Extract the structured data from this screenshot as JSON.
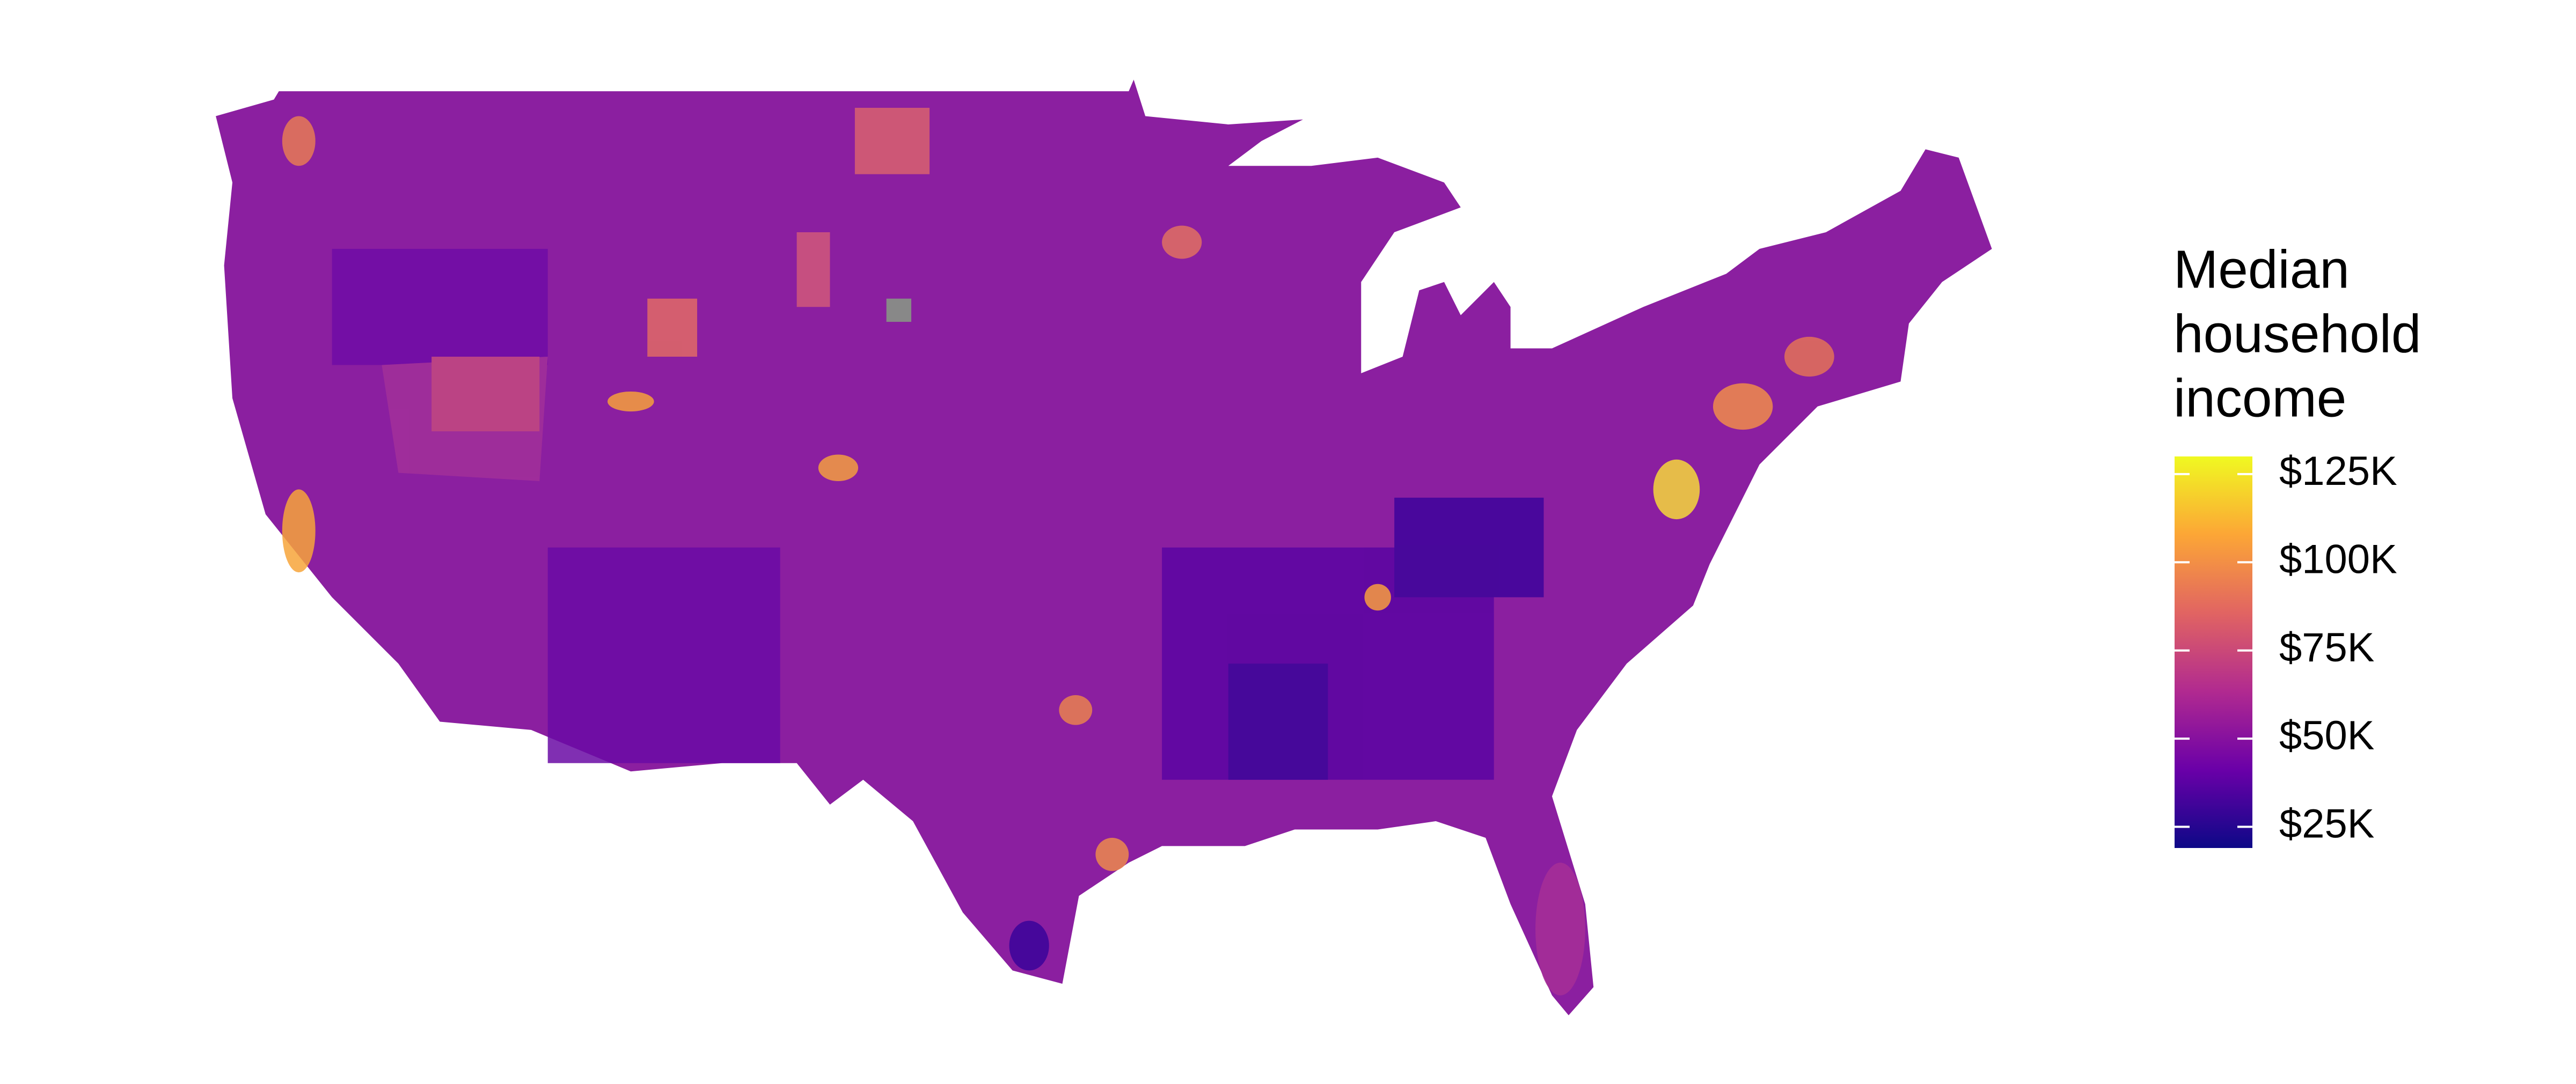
{
  "legend": {
    "title_lines": [
      "Median",
      "household",
      "income"
    ],
    "colorbar": {
      "limits": [
        19000,
        130000
      ],
      "colors": [
        "#0d0887",
        "#6a00a8",
        "#b12a90",
        "#e16462",
        "#fca636",
        "#f0f921"
      ],
      "ticks": [
        {
          "value": 25000,
          "label": "$25K"
        },
        {
          "value": 50000,
          "label": "$50K"
        },
        {
          "value": 75000,
          "label": "$75K"
        },
        {
          "value": 100000,
          "label": "$100K"
        },
        {
          "value": 125000,
          "label": "$125K"
        }
      ]
    }
  }
}
